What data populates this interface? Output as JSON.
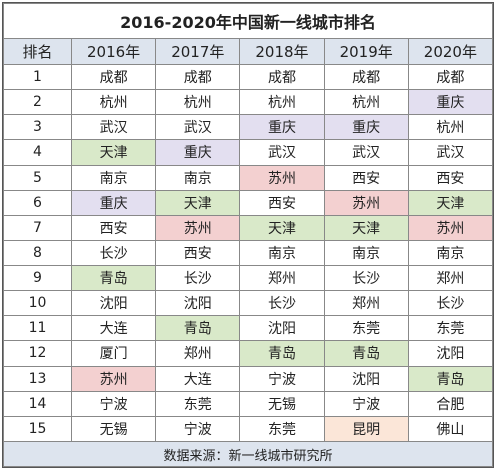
{
  "title": "2016-2020年中国新一线城市排名",
  "table": {
    "header": [
      "排名",
      "2016年",
      "2017年",
      "2018年",
      "2019年",
      "2020年"
    ],
    "rows": [
      [
        1,
        "成都",
        "成都",
        "成都",
        "成都",
        "成都"
      ],
      [
        2,
        "杭州",
        "杭州",
        "杭州",
        "杭州",
        "重庆"
      ],
      [
        3,
        "武汉",
        "武汉",
        "重庆",
        "重庆",
        "杭州"
      ],
      [
        4,
        "天津",
        "重庆",
        "武汉",
        "武汉",
        "武汉"
      ],
      [
        5,
        "南京",
        "南京",
        "苏州",
        "西安",
        "西安"
      ],
      [
        6,
        "重庆",
        "天津",
        "西安",
        "苏州",
        "天津"
      ],
      [
        7,
        "西安",
        "苏州",
        "天津",
        "天津",
        "苏州"
      ],
      [
        8,
        "长沙",
        "西安",
        "南京",
        "南京",
        "南京"
      ],
      [
        9,
        "青岛",
        "长沙",
        "郑州",
        "长沙",
        "郑州"
      ],
      [
        10,
        "沈阳",
        "沈阳",
        "长沙",
        "郑州",
        "长沙"
      ],
      [
        11,
        "大连",
        "青岛",
        "沈阳",
        "东莞",
        "东莞"
      ],
      [
        12,
        "厦门",
        "郑州",
        "青岛",
        "青岛",
        "沈阳"
      ],
      [
        13,
        "苏州",
        "大连",
        "宁波",
        "沈阳",
        "青岛"
      ],
      [
        14,
        "宁波",
        "东莞",
        "无锡",
        "宁波",
        "合肥"
      ],
      [
        15,
        "无锡",
        "宁波",
        "东莞",
        "昆明",
        "佛山"
      ]
    ],
    "highlight_colors": {
      "重庆": "#e3dff0",
      "天津": "#d9e9c9",
      "青岛": "#d9e9c9",
      "苏州": "#f3d0d0",
      "昆明": "#fbe6d8"
    }
  },
  "footer": "数据来源：新一线城市研究所"
}
